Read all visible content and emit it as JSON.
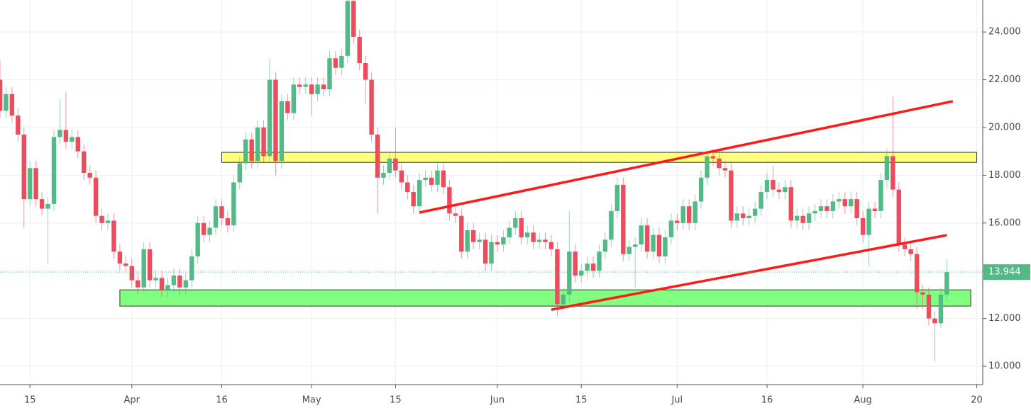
{
  "chart_data": {
    "type": "candlestick",
    "x": [
      "03-10",
      "03-11",
      "03-12",
      "03-13",
      "03-14",
      "03-15",
      "03-16",
      "03-17",
      "03-18",
      "03-19",
      "03-20",
      "03-21",
      "03-22",
      "03-23",
      "03-24",
      "03-25",
      "03-26",
      "03-27",
      "03-28",
      "03-29",
      "03-30",
      "03-31",
      "04-01",
      "04-02",
      "04-03",
      "04-04",
      "04-05",
      "04-06",
      "04-07",
      "04-08",
      "04-09",
      "04-10",
      "04-11",
      "04-12",
      "04-13",
      "04-14",
      "04-15",
      "04-16",
      "04-17",
      "04-18",
      "04-19",
      "04-20",
      "04-21",
      "04-22",
      "04-23",
      "04-24",
      "04-25",
      "04-26",
      "04-27",
      "04-28",
      "04-29",
      "04-30",
      "05-01",
      "05-02",
      "05-03",
      "05-04",
      "05-05",
      "05-06",
      "05-07",
      "05-08",
      "05-09",
      "05-10",
      "05-11",
      "05-12",
      "05-13",
      "05-14",
      "05-15",
      "05-16",
      "05-17",
      "05-18",
      "05-19",
      "05-20",
      "05-21",
      "05-22",
      "05-23",
      "05-24",
      "05-25",
      "05-26",
      "05-27",
      "05-28",
      "05-29",
      "05-30",
      "05-31",
      "06-01",
      "06-02",
      "06-03",
      "06-04",
      "06-05",
      "06-06",
      "06-07",
      "06-08",
      "06-09",
      "06-10",
      "06-11",
      "06-12",
      "06-13",
      "06-14",
      "06-15",
      "06-16",
      "06-17",
      "06-18",
      "06-19",
      "06-20",
      "06-21",
      "06-22",
      "06-23",
      "06-24",
      "06-25",
      "06-26",
      "06-27",
      "06-28",
      "06-29",
      "06-30",
      "07-01",
      "07-02",
      "07-03",
      "07-04",
      "07-05",
      "07-06",
      "07-07",
      "07-08",
      "07-09",
      "07-10",
      "07-11",
      "07-12",
      "07-13",
      "07-14",
      "07-15",
      "07-16",
      "07-17",
      "07-18",
      "07-19",
      "07-20",
      "07-21",
      "07-22",
      "07-23",
      "07-24",
      "07-25",
      "07-26",
      "07-27",
      "07-28",
      "07-29",
      "07-30",
      "07-31",
      "08-01",
      "08-02",
      "08-03",
      "08-04",
      "08-05",
      "08-06",
      "08-07",
      "08-08",
      "08-09",
      "08-10",
      "08-11",
      "08-12",
      "08-13",
      "08-14",
      "08-15"
    ],
    "open": [
      22.0,
      20.7,
      21.4,
      20.5,
      19.7,
      17.0,
      18.3,
      17.0,
      16.6,
      16.8,
      19.6,
      19.9,
      19.4,
      19.6,
      19.0,
      18.1,
      17.9,
      16.3,
      16.0,
      16.1,
      14.8,
      14.3,
      14.2,
      13.6,
      13.3,
      14.9,
      13.6,
      13.7,
      13.2,
      13.4,
      13.8,
      13.3,
      13.6,
      14.6,
      16.0,
      15.5,
      15.8,
      16.7,
      16.2,
      15.9,
      17.7,
      18.5,
      19.5,
      18.6,
      20.0,
      18.8,
      22.0,
      18.6,
      21.1,
      20.6,
      21.8,
      21.7,
      21.8,
      21.4,
      21.8,
      21.6,
      22.9,
      22.5,
      23.0,
      25.3,
      23.8,
      22.7,
      22.0,
      19.7,
      17.9,
      18.1,
      18.7,
      18.2,
      17.7,
      17.3,
      16.7,
      17.8,
      17.9,
      17.6,
      18.2,
      17.5,
      16.4,
      16.3,
      14.8,
      15.7,
      15.2,
      15.3,
      14.3,
      15.2,
      15.1,
      15.4,
      15.8,
      16.2,
      15.4,
      15.6,
      15.2,
      15.3,
      15.2,
      14.9,
      12.6,
      13.0,
      14.8,
      13.8,
      14.0,
      14.3,
      14.0,
      14.8,
      15.3,
      16.5,
      17.6,
      14.7,
      15.0,
      15.1,
      15.9,
      14.8,
      15.5,
      14.6,
      15.4,
      16.1,
      16.0,
      16.7,
      16.0,
      16.9,
      17.9,
      18.8,
      18.7,
      18.3,
      18.2,
      16.1,
      16.4,
      16.2,
      16.3,
      16.6,
      17.3,
      17.8,
      17.4,
      17.3,
      17.5,
      16.1,
      16.3,
      16.0,
      16.4,
      16.5,
      16.7,
      16.5,
      16.9,
      17.0,
      16.7,
      17.0,
      16.2,
      15.5,
      16.6,
      16.5,
      17.8,
      18.8,
      17.4,
      15.1,
      14.9,
      14.7,
      13.1,
      13.0,
      12.0,
      11.8,
      13.0
    ],
    "high": [
      22.8,
      21.7,
      21.7,
      20.8,
      20.0,
      18.6,
      18.6,
      17.3,
      17.1,
      19.9,
      21.2,
      21.5,
      19.9,
      19.9,
      19.3,
      18.4,
      18.2,
      16.6,
      16.4,
      16.4,
      15.1,
      14.6,
      14.5,
      13.9,
      15.2,
      15.2,
      14.0,
      14.0,
      13.7,
      14.1,
      14.1,
      13.9,
      14.9,
      16.3,
      16.3,
      16.1,
      17.0,
      17.0,
      16.5,
      18.0,
      18.8,
      19.8,
      19.8,
      20.3,
      20.3,
      22.9,
      22.3,
      21.4,
      21.4,
      22.1,
      22.1,
      22.1,
      22.1,
      22.1,
      22.1,
      23.2,
      23.2,
      23.3,
      25.4,
      25.4,
      24.1,
      23.0,
      22.3,
      20.0,
      18.4,
      19.0,
      20.0,
      18.5,
      18.0,
      17.6,
      18.1,
      18.2,
      18.2,
      18.5,
      18.5,
      17.8,
      16.7,
      16.6,
      16.0,
      16.0,
      15.6,
      15.6,
      15.5,
      15.5,
      15.7,
      16.1,
      16.5,
      16.5,
      15.9,
      15.9,
      15.6,
      15.6,
      15.5,
      15.2,
      13.3,
      16.5,
      15.1,
      14.3,
      14.6,
      14.6,
      15.1,
      15.6,
      16.8,
      17.9,
      17.9,
      15.3,
      15.4,
      16.2,
      16.2,
      15.8,
      15.8,
      15.7,
      16.4,
      16.4,
      17.0,
      17.0,
      17.2,
      18.2,
      19.1,
      19.1,
      19.0,
      18.6,
      18.5,
      16.7,
      16.7,
      16.6,
      16.9,
      17.6,
      18.1,
      18.4,
      17.7,
      17.8,
      17.8,
      16.6,
      16.6,
      16.7,
      16.8,
      17.0,
      17.0,
      17.2,
      17.3,
      17.3,
      17.3,
      17.3,
      16.5,
      16.9,
      16.9,
      18.1,
      19.1,
      21.3,
      17.7,
      15.4,
      15.2,
      15.0,
      13.4,
      13.3,
      12.3,
      13.3,
      14.5
    ],
    "low": [
      20.4,
      20.4,
      20.2,
      19.4,
      15.8,
      16.7,
      16.7,
      16.3,
      14.3,
      16.5,
      19.3,
      19.1,
      19.1,
      18.7,
      17.8,
      17.6,
      16.0,
      15.7,
      15.7,
      14.5,
      14.0,
      13.9,
      13.3,
      13.0,
      13.1,
      13.3,
      13.3,
      12.9,
      12.9,
      13.1,
      13.0,
      13.0,
      13.3,
      14.3,
      15.2,
      15.2,
      15.5,
      15.9,
      15.6,
      15.6,
      17.4,
      18.2,
      18.3,
      18.3,
      18.5,
      18.5,
      18.0,
      18.3,
      20.3,
      20.3,
      21.4,
      21.4,
      20.5,
      21.1,
      21.3,
      21.3,
      22.2,
      22.2,
      22.7,
      23.5,
      22.4,
      21.0,
      19.4,
      16.4,
      17.6,
      17.8,
      17.9,
      17.4,
      17.0,
      16.4,
      16.4,
      17.5,
      17.3,
      17.3,
      17.2,
      16.1,
      16.0,
      14.5,
      14.5,
      14.9,
      14.9,
      14.0,
      14.0,
      14.8,
      14.8,
      15.1,
      15.5,
      15.1,
      15.1,
      14.9,
      14.9,
      14.9,
      14.6,
      12.1,
      12.3,
      12.7,
      13.5,
      13.5,
      13.7,
      13.7,
      13.7,
      14.5,
      15.0,
      16.2,
      14.4,
      14.4,
      13.3,
      14.8,
      14.5,
      14.5,
      14.3,
      14.3,
      15.1,
      15.7,
      15.7,
      15.7,
      15.7,
      16.6,
      17.6,
      18.4,
      18.0,
      17.9,
      15.8,
      15.8,
      15.9,
      15.9,
      16.0,
      16.3,
      17.0,
      17.1,
      17.0,
      17.0,
      15.8,
      15.8,
      15.7,
      15.7,
      16.1,
      16.2,
      16.2,
      16.2,
      16.6,
      16.4,
      16.4,
      15.9,
      15.2,
      14.2,
      16.2,
      16.2,
      17.5,
      17.1,
      14.8,
      14.6,
      14.4,
      12.4,
      12.4,
      11.7,
      10.2,
      11.6,
      12.7
    ],
    "close": [
      20.7,
      21.4,
      20.5,
      19.7,
      17.0,
      18.3,
      17.0,
      16.6,
      16.8,
      19.6,
      19.9,
      19.4,
      19.6,
      19.0,
      18.1,
      17.9,
      16.3,
      16.0,
      16.1,
      14.8,
      14.3,
      14.2,
      13.6,
      13.3,
      14.9,
      13.6,
      13.7,
      13.2,
      13.4,
      13.8,
      13.3,
      13.6,
      14.6,
      16.0,
      15.5,
      15.8,
      16.7,
      16.2,
      15.9,
      17.7,
      18.5,
      19.5,
      18.6,
      20.0,
      18.8,
      22.0,
      18.6,
      21.1,
      20.6,
      21.8,
      21.7,
      21.8,
      21.4,
      21.8,
      21.6,
      22.9,
      22.5,
      23.0,
      25.3,
      23.8,
      22.7,
      22.0,
      19.7,
      17.9,
      18.1,
      18.7,
      18.2,
      17.7,
      17.3,
      16.7,
      17.8,
      17.9,
      17.6,
      18.2,
      17.5,
      16.4,
      16.3,
      14.8,
      15.7,
      15.2,
      15.3,
      14.3,
      15.2,
      15.1,
      15.4,
      15.8,
      16.2,
      15.4,
      15.6,
      15.2,
      15.3,
      15.2,
      14.9,
      12.6,
      13.0,
      14.8,
      13.8,
      14.0,
      14.3,
      14.0,
      14.8,
      15.3,
      16.5,
      17.6,
      14.7,
      15.0,
      15.1,
      15.9,
      14.8,
      15.5,
      14.6,
      15.4,
      16.1,
      16.0,
      16.7,
      16.0,
      16.9,
      17.9,
      18.8,
      18.7,
      18.3,
      18.2,
      16.1,
      16.4,
      16.2,
      16.3,
      16.6,
      17.3,
      17.8,
      17.4,
      17.3,
      17.5,
      16.1,
      16.3,
      16.0,
      16.4,
      16.5,
      16.7,
      16.5,
      16.9,
      17.0,
      16.7,
      17.0,
      16.2,
      15.5,
      16.6,
      16.5,
      17.8,
      18.8,
      17.4,
      15.1,
      14.9,
      14.7,
      13.1,
      13.0,
      12.0,
      11.8,
      13.0,
      13.944
    ],
    "up_color": "#53b987",
    "down_color": "#eb4d5c",
    "xlim": [
      "03-10",
      "08-21"
    ],
    "xticks": [
      {
        "value": "03-15",
        "label": "15"
      },
      {
        "value": "04-01",
        "label": "Apr"
      },
      {
        "value": "04-16",
        "label": "16"
      },
      {
        "value": "05-01",
        "label": "May"
      },
      {
        "value": "05-15",
        "label": "15"
      },
      {
        "value": "06-01",
        "label": "Jun"
      },
      {
        "value": "06-15",
        "label": "15"
      },
      {
        "value": "07-01",
        "label": "Jul"
      },
      {
        "value": "07-16",
        "label": "16"
      },
      {
        "value": "08-01",
        "label": "Aug"
      },
      {
        "value": "08-20",
        "label": "20"
      }
    ],
    "ylim": [
      9.23,
      25.34
    ],
    "yticks": [
      {
        "value": 10,
        "label": "10.000"
      },
      {
        "value": 12,
        "label": "12.000"
      },
      {
        "value": 14,
        "label": "14.000"
      },
      {
        "value": 16,
        "label": "16.000"
      },
      {
        "value": 18,
        "label": "18.000"
      },
      {
        "value": 20,
        "label": "20.000"
      },
      {
        "value": 22,
        "label": "22.000"
      },
      {
        "value": 24,
        "label": "24.000"
      }
    ],
    "grid": true,
    "zones": [
      {
        "color": "#ffff80",
        "x": [
          "04-16",
          "08-20"
        ],
        "y": [
          18.54,
          18.96
        ]
      },
      {
        "color": "#80ff80",
        "x": [
          "03-30",
          "08-19"
        ],
        "y": [
          12.52,
          13.2
        ]
      }
    ],
    "trendlines": [
      {
        "color": "#ff1a1a",
        "x": [
          "05-19",
          "08-16"
        ],
        "y": [
          16.44,
          21.1
        ]
      },
      {
        "color": "#ff1a1a",
        "x": [
          "06-10",
          "08-15"
        ],
        "y": [
          12.37,
          15.49
        ]
      }
    ]
  }
}
